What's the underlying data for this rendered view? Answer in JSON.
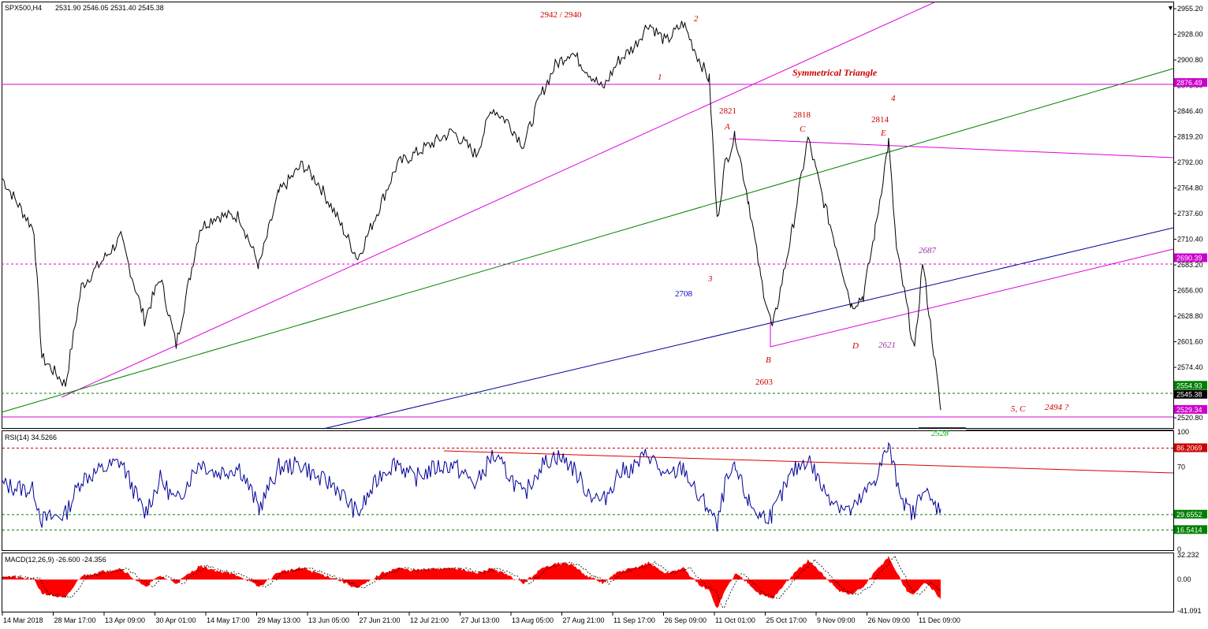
{
  "chart_data": [
    {
      "type": "line",
      "title": "SPX500,H4",
      "header": {
        "symbol": "SPX500,H4",
        "ohlc": "2531.90 2546.05 2531.40 2545.38",
        "symbol_marker": "▼"
      },
      "ylim": [
        2510,
        2962
      ],
      "y_ticks": [
        "2955.20",
        "2928.00",
        "2900.80",
        "2873.60",
        "2846.40",
        "2819.20",
        "2792.00",
        "2764.80",
        "2737.60",
        "2710.40",
        "2683.20",
        "2656.00",
        "2628.80",
        "2601.60",
        "2574.40",
        "2547.20",
        "2520.80"
      ],
      "x_ticks": [
        "14 Mar 2018",
        "28 Mar 17:00",
        "13 Apr 09:00",
        "30 Apr 01:00",
        "14 May 17:00",
        "29 May 13:00",
        "13 Jun 05:00",
        "27 Jun 21:00",
        "12 Jul 21:00",
        "27 Jul 13:00",
        "13 Aug 05:00",
        "27 Aug 21:00",
        "11 Sep 17:00",
        "26 Sep 09:00",
        "11 Oct 01:00",
        "25 Oct 17:00",
        "9 Nov 09:00",
        "26 Nov 09:00",
        "11 Dec 09:00"
      ],
      "x_index_range": [
        0,
        1185
      ],
      "series": [
        {
          "x": [
            0,
            40,
            50,
            80,
            100,
            150,
            180,
            200,
            220,
            250,
            270,
            300,
            325,
            350,
            380,
            400,
            420,
            450,
            480,
            500,
            520,
            550,
            570,
            600,
            620,
            640,
            660,
            680,
            700,
            720,
            740,
            760,
            780,
            800,
            818,
            840,
            862,
            880,
            895,
            905,
            915,
            928,
            945,
            960,
            975,
            1000,
            1020,
            1040,
            1060,
            1075,
            1090,
            1105,
            1122,
            1132,
            1145,
            1155,
            1165,
            1175,
            1188
          ],
          "y": [
            2775,
            2720,
            2585,
            2556,
            2660,
            2712,
            2625,
            2670,
            2598,
            2722,
            2735,
            2735,
            2682,
            2760,
            2790,
            2770,
            2740,
            2690,
            2750,
            2790,
            2800,
            2815,
            2825,
            2800,
            2850,
            2835,
            2810,
            2860,
            2895,
            2910,
            2890,
            2870,
            2900,
            2915,
            2940,
            2920,
            2940,
            2905,
            2880,
            2730,
            2790,
            2821,
            2750,
            2670,
            2615,
            2720,
            2818,
            2750,
            2690,
            2640,
            2650,
            2720,
            2814,
            2700,
            2640,
            2590,
            2687,
            2620,
            2529
          ]
        }
      ],
      "price_tags": [
        {
          "value": 2876.49,
          "label": "2876.49",
          "color": "#cc00cc"
        },
        {
          "value": 2690.39,
          "label": "2690.39",
          "color": "#cc00cc"
        },
        {
          "value": 2554.93,
          "label": "2554.93",
          "color": "#008000"
        },
        {
          "value": 2545.38,
          "label": "2545.38",
          "color": "#000000"
        },
        {
          "value": 2529.34,
          "label": "2529.34",
          "color": "#cc00cc"
        }
      ],
      "annotations": [
        {
          "text": "2942 / 2940",
          "color": "#cc0000",
          "style": "normal"
        },
        {
          "text": "2",
          "color": "#cc0000",
          "style": "italic"
        },
        {
          "text": "1",
          "color": "#cc0000",
          "style": "italic"
        },
        {
          "text": "Symmetrical Triangle",
          "color": "#cc0000",
          "style": "bold-italic"
        },
        {
          "text": "4",
          "color": "#cc0000",
          "style": "italic"
        },
        {
          "text": "2821",
          "color": "#cc0000",
          "style": "normal"
        },
        {
          "text": "A",
          "color": "#cc0000",
          "style": "italic"
        },
        {
          "text": "2818",
          "color": "#cc0000",
          "style": "normal"
        },
        {
          "text": "C",
          "color": "#cc0000",
          "style": "italic"
        },
        {
          "text": "2814",
          "color": "#cc0000",
          "style": "normal"
        },
        {
          "text": "E",
          "color": "#cc0000",
          "style": "italic"
        },
        {
          "text": "2687",
          "color": "#993399",
          "style": "italic"
        },
        {
          "text": "3",
          "color": "#cc0000",
          "style": "italic"
        },
        {
          "text": "2708",
          "color": "#0000cc",
          "style": "normal"
        },
        {
          "text": "D",
          "color": "#cc0000",
          "style": "italic"
        },
        {
          "text": "2621",
          "color": "#993399",
          "style": "italic"
        },
        {
          "text": "B",
          "color": "#cc0000",
          "style": "italic"
        },
        {
          "text": "2603",
          "color": "#cc0000",
          "style": "normal"
        },
        {
          "text": "5, C",
          "color": "#cc0000",
          "style": "italic"
        },
        {
          "text": "2494 ?",
          "color": "#cc0000",
          "style": "italic"
        },
        {
          "text": "2528",
          "color": "#00aa00",
          "style": "italic"
        }
      ]
    },
    {
      "type": "line",
      "title": "RSI(14) 34.5266",
      "header": "RSI(14) 34.5266",
      "ylim": [
        0,
        100
      ],
      "y_ticks": [
        "100",
        "70",
        "0"
      ],
      "levels": [
        {
          "value": 86.2069,
          "label": "86.2069",
          "color": "#cc0000"
        },
        {
          "value": 29.6552,
          "label": "29.6552",
          "color": "#008000"
        },
        {
          "value": 16.5414,
          "label": "16.5414",
          "color": "#008000"
        }
      ],
      "series": [
        {
          "x": [
            0,
            40,
            50,
            80,
            100,
            150,
            180,
            200,
            220,
            250,
            270,
            300,
            325,
            350,
            380,
            400,
            420,
            450,
            480,
            500,
            520,
            550,
            570,
            600,
            620,
            640,
            660,
            680,
            700,
            720,
            740,
            760,
            780,
            800,
            818,
            840,
            862,
            880,
            895,
            905,
            915,
            928,
            945,
            960,
            975,
            1000,
            1020,
            1040,
            1060,
            1075,
            1090,
            1105,
            1122,
            1132,
            1145,
            1155,
            1165,
            1175,
            1188
          ],
          "y": [
            55,
            50,
            25,
            30,
            60,
            75,
            30,
            60,
            40,
            75,
            65,
            70,
            35,
            70,
            72,
            60,
            55,
            30,
            65,
            75,
            60,
            70,
            72,
            55,
            80,
            65,
            45,
            70,
            80,
            72,
            50,
            40,
            65,
            70,
            82,
            60,
            70,
            45,
            35,
            18,
            55,
            68,
            40,
            28,
            30,
            65,
            78,
            50,
            38,
            32,
            45,
            60,
            88,
            60,
            35,
            30,
            55,
            40,
            34.5
          ]
        }
      ]
    },
    {
      "type": "area",
      "title": "MACD(12,26,9) -26.600 -24.356",
      "header": "MACD(12,26,9) -26.600 -24.356",
      "ylim": [
        -41.091,
        32.232
      ],
      "y_ticks": [
        "32.232",
        "0.00",
        "-41.091"
      ],
      "series": [
        {
          "x": [
            0,
            40,
            50,
            80,
            100,
            150,
            180,
            200,
            220,
            250,
            270,
            300,
            325,
            350,
            380,
            400,
            420,
            450,
            480,
            500,
            520,
            550,
            570,
            600,
            620,
            640,
            660,
            680,
            700,
            720,
            740,
            760,
            780,
            800,
            818,
            840,
            862,
            880,
            895,
            905,
            915,
            928,
            945,
            960,
            975,
            1000,
            1020,
            1040,
            1060,
            1075,
            1090,
            1105,
            1122,
            1132,
            1145,
            1155,
            1165,
            1175,
            1188
          ],
          "y": [
            5,
            0,
            -18,
            -25,
            5,
            15,
            -10,
            5,
            -5,
            18,
            12,
            5,
            -10,
            10,
            15,
            8,
            2,
            -12,
            8,
            15,
            12,
            14,
            16,
            8,
            15,
            5,
            -5,
            12,
            22,
            20,
            5,
            -5,
            10,
            15,
            22,
            8,
            15,
            -5,
            -15,
            -38,
            -15,
            8,
            -5,
            -20,
            -25,
            5,
            25,
            5,
            -15,
            -20,
            -10,
            10,
            30,
            10,
            -15,
            -20,
            -5,
            -10,
            -26.6
          ]
        }
      ]
    }
  ]
}
